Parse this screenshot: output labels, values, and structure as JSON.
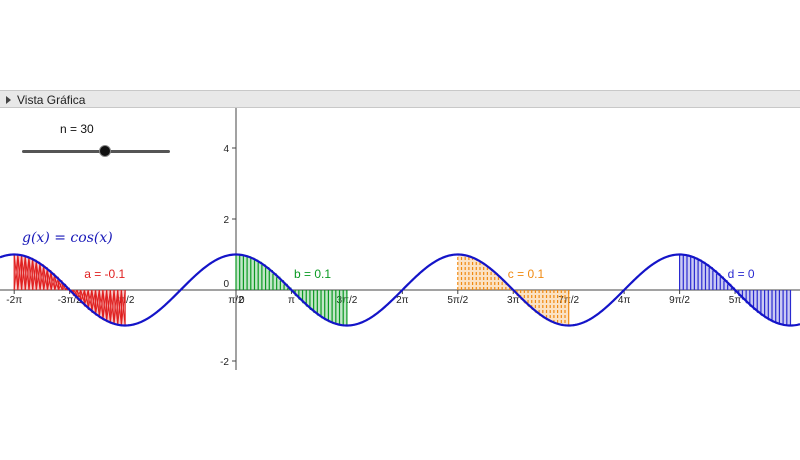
{
  "panel": {
    "title": "Vista Gráfica"
  },
  "slider": {
    "label": "n = 30",
    "value": 30,
    "min": 1,
    "max": 100
  },
  "function_label": {
    "name": "g(x)",
    "equals": "=",
    "expr": "cos(x)"
  },
  "axes": {
    "x_ticks": [
      "-2π",
      "-3π/2",
      "-π/2",
      "0",
      "π/2",
      "π",
      "3π/2",
      "2π",
      "5π/2",
      "3π",
      "7π/2",
      "4π",
      "9π/2",
      "5π"
    ],
    "y_ticks": [
      "4",
      "2",
      "0",
      "-2"
    ]
  },
  "regions": [
    {
      "label": "a = -0.1",
      "color": "#e02020",
      "from": "-2π",
      "to": "-π",
      "pattern": "crosshatch"
    },
    {
      "label": "b = 0.1",
      "color": "#0a9a22",
      "from": "0",
      "to": "π",
      "pattern": "vertical"
    },
    {
      "label": "c = 0.1",
      "color": "#f08a12",
      "from": "2π",
      "to": "3π",
      "pattern": "dashed"
    },
    {
      "label": "d = 0",
      "color": "#2a2ad0",
      "from": "4π",
      "to": "5π",
      "pattern": "vertical"
    }
  ],
  "colors": {
    "curve": "#1414c8",
    "axis": "#444444"
  }
}
